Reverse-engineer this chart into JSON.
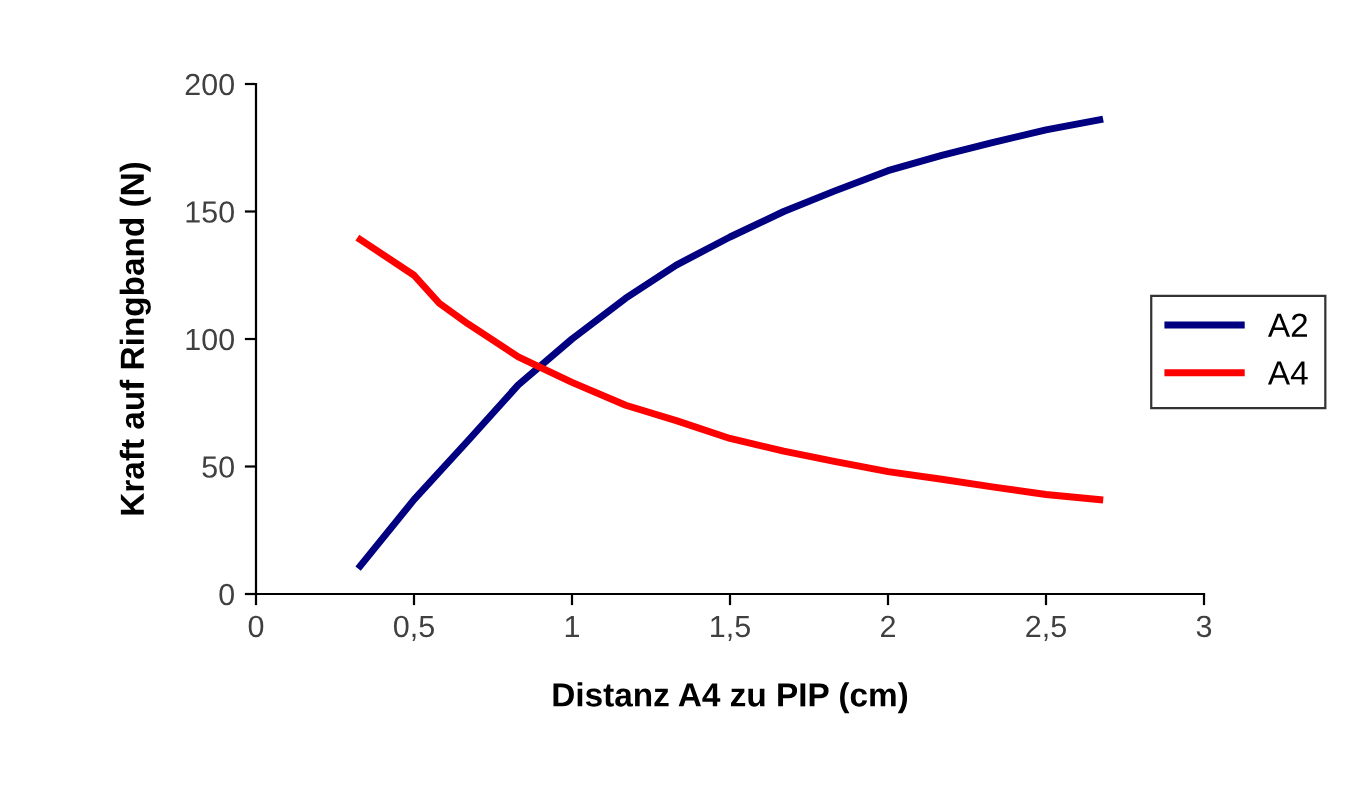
{
  "chart_data": {
    "type": "line",
    "xlabel": "Distanz A4 zu PIP (cm)",
    "ylabel": "Kraft auf Ringband (N)",
    "series": [
      {
        "name": "A2",
        "color": "#000080",
        "x": [
          0.33,
          0.5,
          0.67,
          0.83,
          1.0,
          1.17,
          1.33,
          1.5,
          1.67,
          1.83,
          2.0,
          2.17,
          2.33,
          2.5,
          2.67
        ],
        "values": [
          11,
          37,
          60,
          82,
          100,
          116,
          129,
          140,
          150,
          158,
          166,
          172,
          177,
          182,
          186
        ]
      },
      {
        "name": "A4",
        "color": "#ff0000",
        "x": [
          0.33,
          0.5,
          0.58,
          0.67,
          0.83,
          1.0,
          1.17,
          1.33,
          1.5,
          1.67,
          1.83,
          2.0,
          2.17,
          2.33,
          2.5,
          2.67
        ],
        "values": [
          139,
          125,
          114,
          106,
          93,
          83,
          74,
          68,
          61,
          56,
          52,
          48,
          45,
          42,
          39,
          37
        ]
      }
    ],
    "xlim": [
      0,
      3
    ],
    "xticks": [
      0,
      {
        "value": 0.5,
        "label": "0,5"
      },
      1,
      {
        "value": 1.5,
        "label": "1,5"
      },
      2,
      {
        "value": 2.5,
        "label": "2,5"
      },
      3
    ],
    "ylim": [
      0,
      200
    ],
    "yticks": [
      0,
      50,
      100,
      150,
      200
    ],
    "grid": false,
    "legend": "right",
    "marker": "none",
    "line_style": "solid"
  }
}
